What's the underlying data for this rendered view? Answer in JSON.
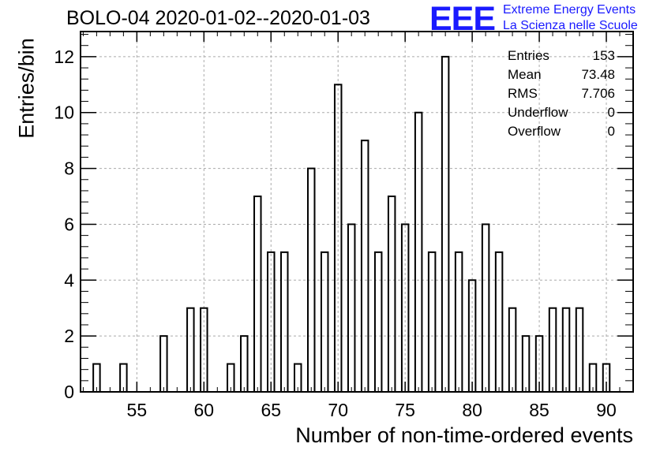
{
  "header": {
    "title": "BOLO-04 2020-01-02--2020-01-03",
    "logo_mark": "EEE",
    "logo_line1": "Extreme Energy Events",
    "logo_line2": "La Scienza nelle Scuole"
  },
  "stats": [
    {
      "label": "Entries",
      "value": "153"
    },
    {
      "label": "Mean",
      "value": "73.48"
    },
    {
      "label": "RMS",
      "value": "7.706"
    },
    {
      "label": "Underflow",
      "value": "0"
    },
    {
      "label": "Overflow",
      "value": "0"
    }
  ],
  "colors": {
    "logo": "#1a1aff",
    "grid": "#aaaaaa",
    "bars": "#000000"
  },
  "chart_data": {
    "type": "bar",
    "title": "BOLO-04 2020-01-02--2020-01-03",
    "xlabel": "Number of non-time-ordered events",
    "ylabel": "Entries/bin",
    "xlim": [
      50.8,
      92
    ],
    "ylim": [
      0,
      12.9
    ],
    "xticks": [
      55,
      60,
      65,
      70,
      75,
      80,
      85,
      90
    ],
    "yticks": [
      0,
      2,
      4,
      6,
      8,
      10,
      12
    ],
    "grid": true,
    "bin_width": 0.5,
    "x": [
      52,
      54,
      57,
      59,
      60,
      62,
      63,
      64,
      65,
      66,
      67,
      68,
      69,
      70,
      71,
      72,
      73,
      74,
      75,
      76,
      77,
      78,
      79,
      80,
      81,
      82,
      83,
      84,
      85,
      86,
      87,
      88,
      89,
      90
    ],
    "values": [
      1,
      1,
      2,
      3,
      3,
      1,
      2,
      7,
      5,
      5,
      1,
      8,
      5,
      11,
      6,
      9,
      5,
      7,
      6,
      10,
      5,
      12,
      5,
      4,
      6,
      5,
      3,
      2,
      2,
      3,
      3,
      3,
      1,
      1
    ]
  }
}
